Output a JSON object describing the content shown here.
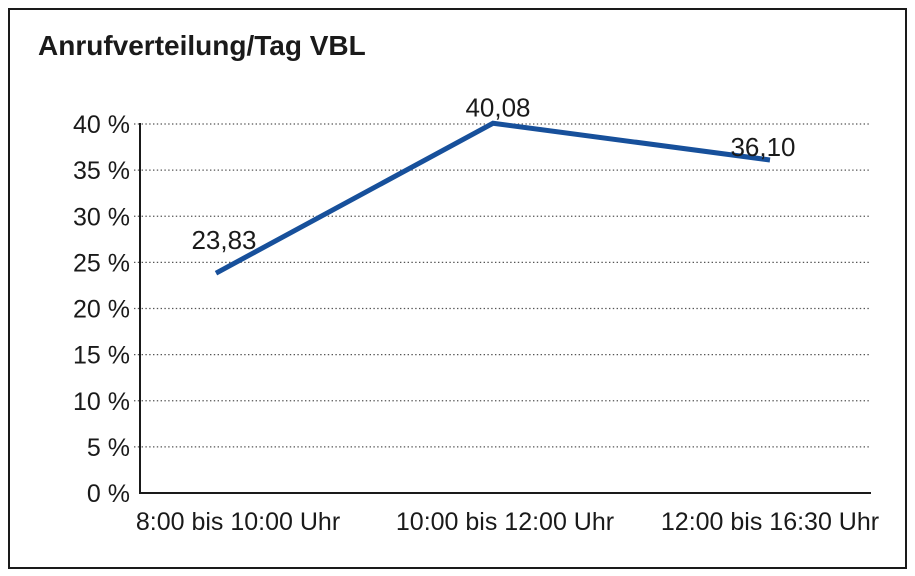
{
  "chart_data": {
    "type": "line",
    "title": "Anrufverteilung/Tag VBL",
    "categories": [
      "8:00 bis 10:00 Uhr",
      "10:00 bis 12:00 Uhr",
      "12:00 bis 16:30 Uhr"
    ],
    "values": [
      23.83,
      40.08,
      36.1
    ],
    "point_labels": [
      "23,83",
      "40,08",
      "36,10"
    ],
    "ylim": [
      0,
      40
    ],
    "yticks": [
      {
        "value": 0,
        "label": "0 %"
      },
      {
        "value": 5,
        "label": "5 %"
      },
      {
        "value": 10,
        "label": "10 %"
      },
      {
        "value": 15,
        "label": "15 %"
      },
      {
        "value": 20,
        "label": "20 %"
      },
      {
        "value": 25,
        "label": "25 %"
      },
      {
        "value": 30,
        "label": "30 %"
      },
      {
        "value": 35,
        "label": "35 %"
      },
      {
        "value": 40,
        "label": "40 %"
      }
    ],
    "xlabel": "",
    "ylabel": "",
    "legend": "none",
    "grid": "horizontal-dotted",
    "colors": {
      "line": "#17509B",
      "axis": "#1a1a1a",
      "grid": "#555555",
      "text": "#1a1a1a",
      "background": "#ffffff",
      "frame_border": "#1a1a1a"
    }
  }
}
